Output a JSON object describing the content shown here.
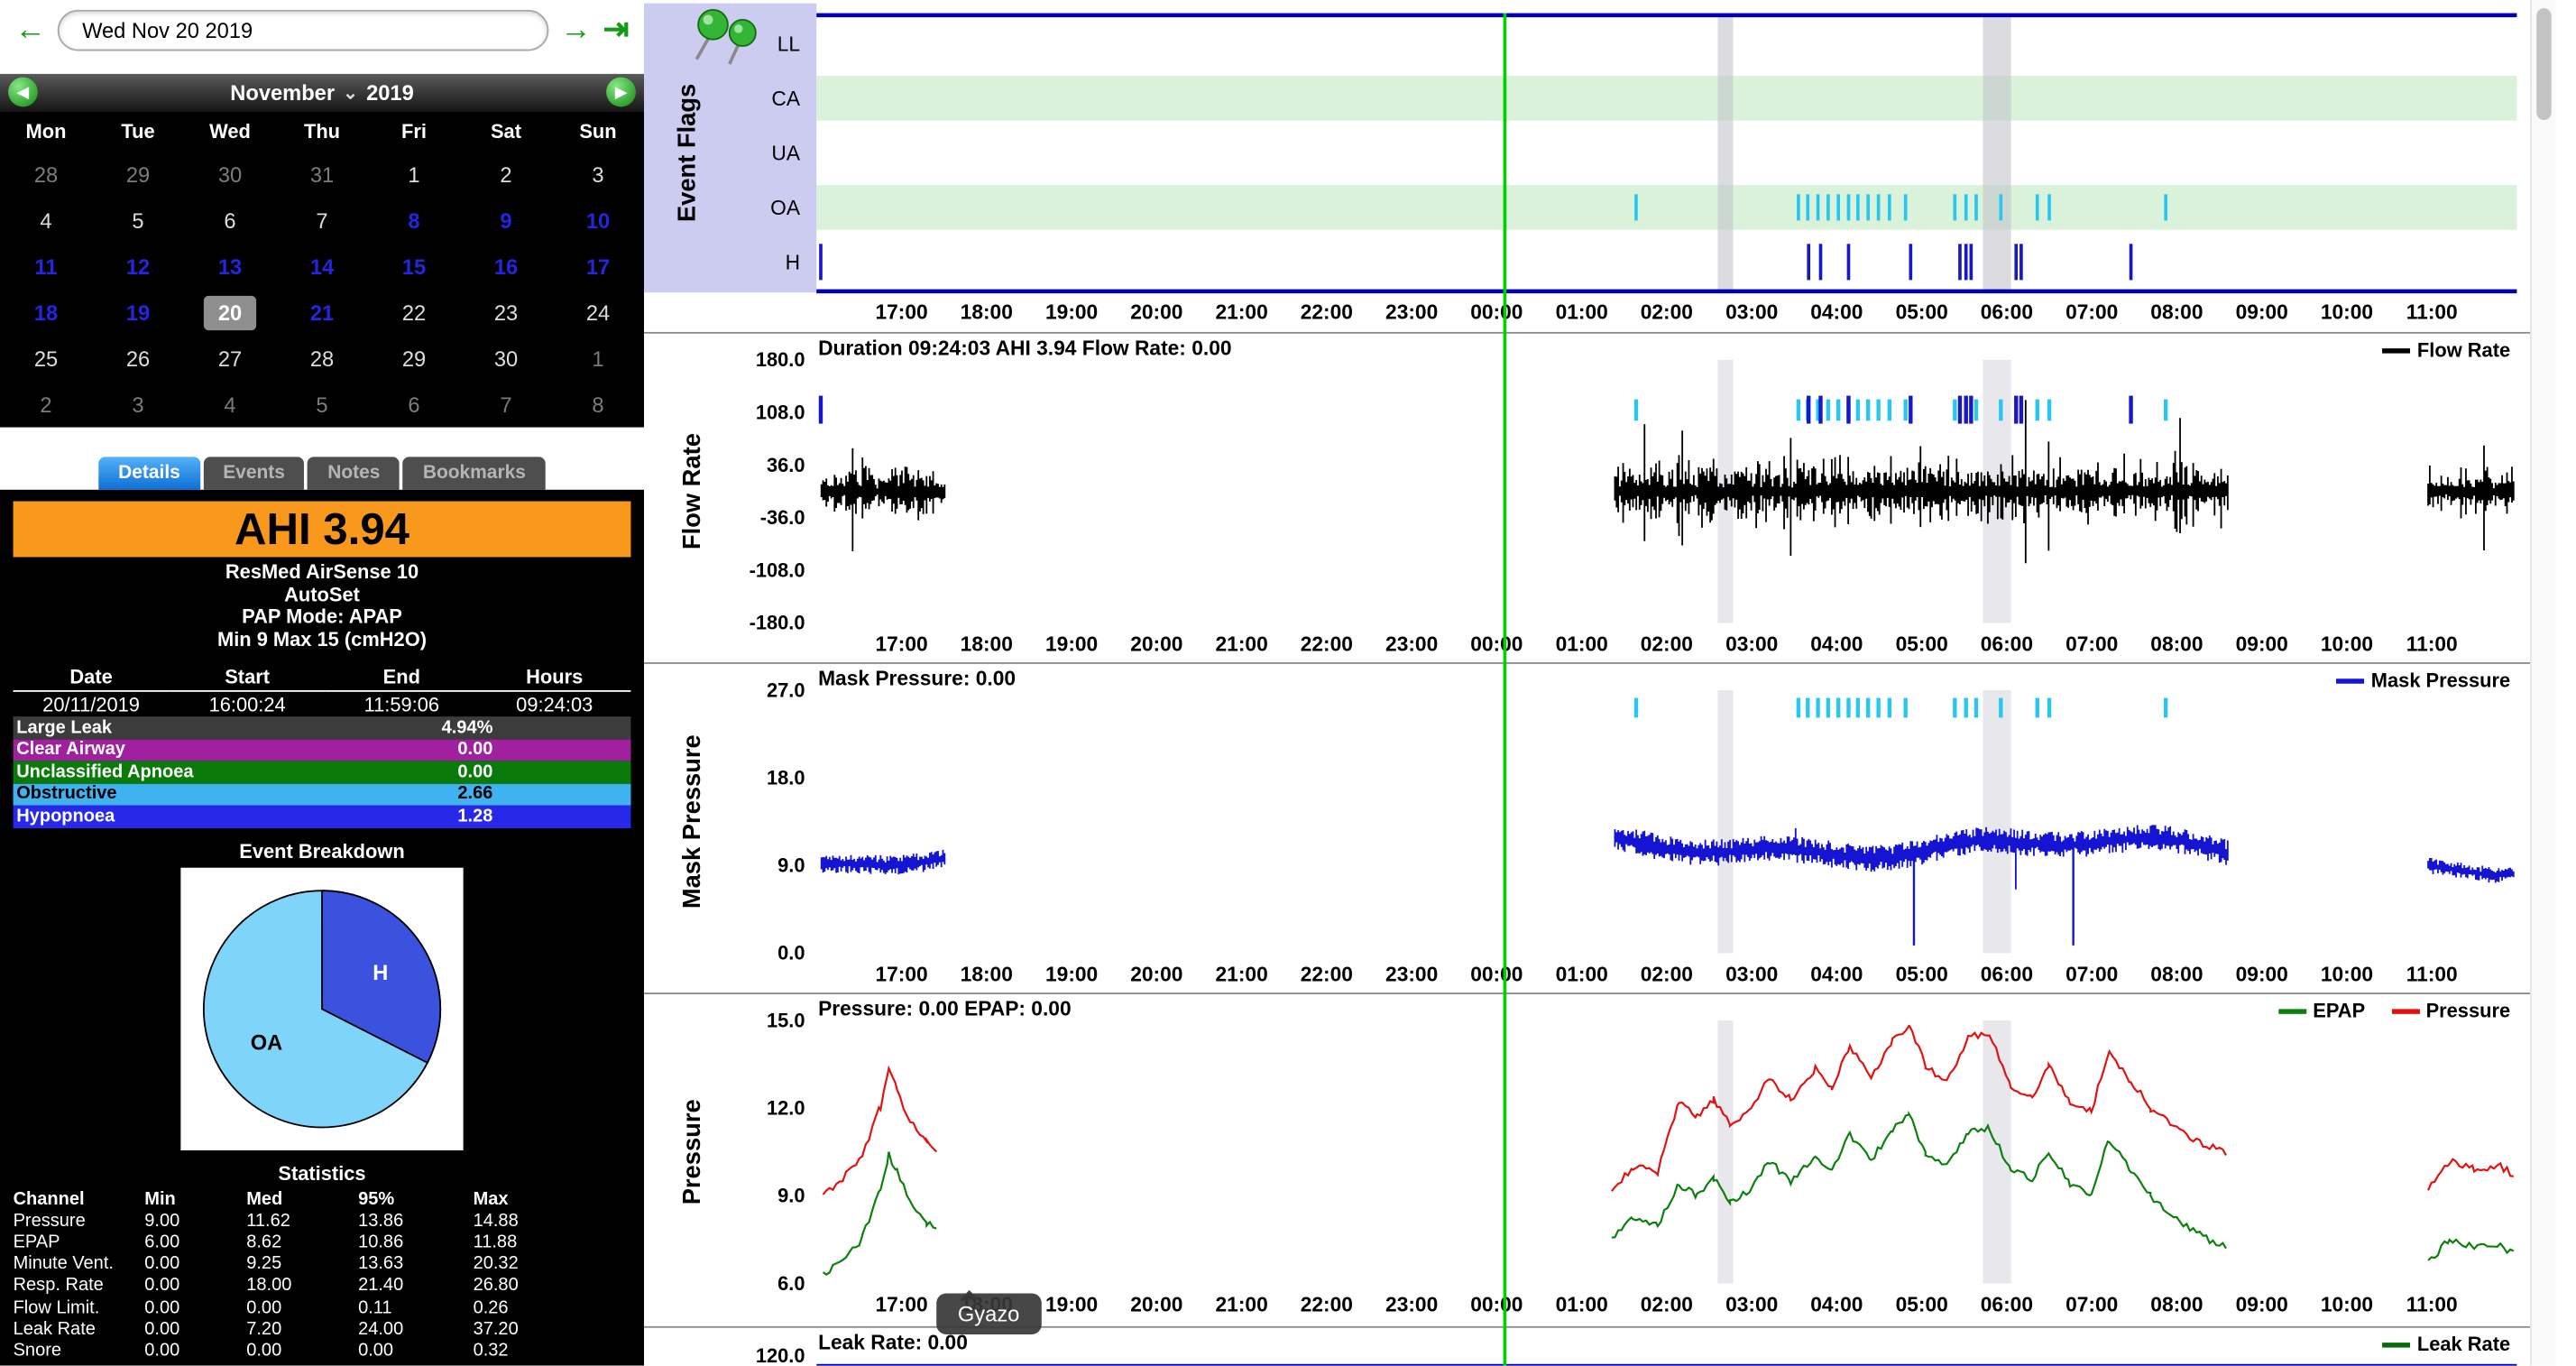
{
  "topbar": {
    "date_value": "Wed Nov 20 2019",
    "icons": {
      "prev": "←",
      "next": "→",
      "jump_last": "⇥"
    }
  },
  "calendar": {
    "month": "November",
    "year": "2019",
    "dropdown_icon": "⌄",
    "nav_prev_icon": "◀",
    "nav_next_icon": "▶",
    "day_headers": [
      "Mon",
      "Tue",
      "Wed",
      "Thu",
      "Fri",
      "Sat",
      "Sun"
    ],
    "weeks": [
      [
        {
          "d": "28",
          "t": "dim"
        },
        {
          "d": "29",
          "t": "dim"
        },
        {
          "d": "30",
          "t": "dim"
        },
        {
          "d": "31",
          "t": "dim"
        },
        {
          "d": "1",
          "t": "normal"
        },
        {
          "d": "2",
          "t": "normal"
        },
        {
          "d": "3",
          "t": "normal"
        }
      ],
      [
        {
          "d": "4",
          "t": "normal"
        },
        {
          "d": "5",
          "t": "normal"
        },
        {
          "d": "6",
          "t": "normal"
        },
        {
          "d": "7",
          "t": "normal"
        },
        {
          "d": "8",
          "t": "data"
        },
        {
          "d": "9",
          "t": "data"
        },
        {
          "d": "10",
          "t": "data"
        }
      ],
      [
        {
          "d": "11",
          "t": "data"
        },
        {
          "d": "12",
          "t": "data"
        },
        {
          "d": "13",
          "t": "data"
        },
        {
          "d": "14",
          "t": "data"
        },
        {
          "d": "15",
          "t": "data"
        },
        {
          "d": "16",
          "t": "data"
        },
        {
          "d": "17",
          "t": "data"
        }
      ],
      [
        {
          "d": "18",
          "t": "data"
        },
        {
          "d": "19",
          "t": "data"
        },
        {
          "d": "20",
          "t": "selected"
        },
        {
          "d": "21",
          "t": "data"
        },
        {
          "d": "22",
          "t": "normal"
        },
        {
          "d": "23",
          "t": "normal"
        },
        {
          "d": "24",
          "t": "normal"
        }
      ],
      [
        {
          "d": "25",
          "t": "normal"
        },
        {
          "d": "26",
          "t": "normal"
        },
        {
          "d": "27",
          "t": "normal"
        },
        {
          "d": "28",
          "t": "normal"
        },
        {
          "d": "29",
          "t": "normal"
        },
        {
          "d": "30",
          "t": "normal"
        },
        {
          "d": "1",
          "t": "dim"
        }
      ],
      [
        {
          "d": "2",
          "t": "dim"
        },
        {
          "d": "3",
          "t": "dim"
        },
        {
          "d": "4",
          "t": "dim"
        },
        {
          "d": "5",
          "t": "dim"
        },
        {
          "d": "6",
          "t": "dim"
        },
        {
          "d": "7",
          "t": "dim"
        },
        {
          "d": "8",
          "t": "dim"
        }
      ]
    ]
  },
  "tabs": [
    {
      "label": "Details",
      "active": true
    },
    {
      "label": "Events",
      "active": false
    },
    {
      "label": "Notes",
      "active": false
    },
    {
      "label": "Bookmarks",
      "active": false
    }
  ],
  "details": {
    "ahi_label": "AHI 3.94",
    "device_lines": [
      "ResMed AirSense 10",
      "AutoSet",
      "PAP Mode: APAP",
      "Min 9 Max 15 (cmH2O)"
    ],
    "session": {
      "headers": [
        "Date",
        "Start",
        "End",
        "Hours"
      ],
      "values": [
        "20/11/2019",
        "16:00:24",
        "11:59:06",
        "09:24:03"
      ]
    },
    "event_rows": [
      {
        "label": "Large Leak",
        "value": "4.94%",
        "bg": "#3c3c3c",
        "fg": "#ffffff"
      },
      {
        "label": "Clear Airway",
        "value": "0.00",
        "bg": "#a020a0",
        "fg": "#ffffff"
      },
      {
        "label": "Unclassified Apnoea",
        "value": "0.00",
        "bg": "#0a7a0a",
        "fg": "#ffffff"
      },
      {
        "label": "Obstructive",
        "value": "2.66",
        "bg": "#3fb2f0",
        "fg": "#000000"
      },
      {
        "label": "Hypopnoea",
        "value": "1.28",
        "bg": "#2828e8",
        "fg": "#ffffff"
      }
    ],
    "breakdown_title": "Event Breakdown",
    "pie": {
      "slices": [
        {
          "label": "OA",
          "pct": 67.5,
          "color": "#7fd4fa",
          "label_color": "#000000"
        },
        {
          "label": "H",
          "pct": 32.5,
          "color": "#3a52dd",
          "label_color": "#ffffff"
        }
      ]
    },
    "stats": {
      "title": "Statistics",
      "headers": [
        "Channel",
        "Min",
        "Med",
        "95%",
        "Max"
      ],
      "rows": [
        [
          "Pressure",
          "9.00",
          "11.62",
          "13.86",
          "14.88"
        ],
        [
          "EPAP",
          "6.00",
          "8.62",
          "10.86",
          "11.88"
        ],
        [
          "Minute Vent.",
          "0.00",
          "9.25",
          "13.63",
          "20.32"
        ],
        [
          "Resp. Rate",
          "0.00",
          "18.00",
          "21.40",
          "26.80"
        ],
        [
          "Flow Limit.",
          "0.00",
          "0.00",
          "0.11",
          "0.26"
        ],
        [
          "Leak Rate",
          "0.00",
          "7.20",
          "24.00",
          "37.20"
        ],
        [
          "Snore",
          "0.00",
          "0.00",
          "0.00",
          "0.32"
        ]
      ]
    }
  },
  "gyazo_label": "Gyazo",
  "time_ticks": [
    "17:00",
    "18:00",
    "19:00",
    "20:00",
    "21:00",
    "22:00",
    "23:00",
    "00:00",
    "01:00",
    "02:00",
    "03:00",
    "04:00",
    "05:00",
    "06:00",
    "07:00",
    "08:00",
    "09:00",
    "10:00",
    "11:00"
  ],
  "cursor_hour": 8.08,
  "chart_data": [
    {
      "id": "event_flags",
      "type": "event-flags",
      "ylabel": "Event Flags",
      "rows": [
        "LL",
        "CA",
        "UA",
        "OA",
        "H"
      ],
      "shaded_row_indexes": [
        1,
        3
      ],
      "x_axis": {
        "start": "16:00",
        "hours_span": 20
      },
      "oa_event_hours": [
        9.64,
        11.55,
        11.66,
        11.78,
        11.9,
        12.02,
        12.14,
        12.25,
        12.37,
        12.49,
        12.62,
        12.81,
        13.39,
        13.52,
        13.64,
        13.93,
        14.36,
        14.5,
        15.87
      ],
      "h_event_hours": [
        0.05,
        11.67,
        11.81,
        12.14,
        12.87,
        13.45,
        13.52,
        13.58,
        14.11,
        14.17,
        15.46
      ],
      "large_leak_bands": [
        [
          10.6,
          10.78
        ],
        [
          13.72,
          14.05
        ]
      ],
      "colors": {
        "oa": "#27c7f2",
        "h": "#1717c9",
        "band": "#c4c4cc",
        "shade": "#d9f2d9",
        "border": "#0000b4"
      }
    },
    {
      "id": "flow_rate",
      "type": "line",
      "ylabel": "Flow Rate",
      "title": "Duration 09:24:03 AHI 3.94 Flow Rate: 0.00",
      "legend": [
        {
          "label": "Flow Rate",
          "color": "#000000"
        }
      ],
      "ylim": [
        -180,
        180
      ],
      "yticks": [
        180,
        108,
        36,
        -36,
        -108,
        -180
      ],
      "segments": [
        {
          "start": 0.05,
          "end": 1.5,
          "amp": 40
        },
        {
          "start": 9.4,
          "end": 16.6,
          "amp": 48
        },
        {
          "start": 18.95,
          "end": 19.97,
          "amp": 38
        }
      ]
    },
    {
      "id": "mask_pressure",
      "type": "line",
      "ylabel": "Mask Pressure",
      "title": "Mask Pressure: 0.00",
      "legend": [
        {
          "label": "Mask Pressure",
          "color": "#1414d2"
        }
      ],
      "ylim": [
        0,
        27
      ],
      "yticks": [
        27,
        18,
        9,
        0
      ],
      "segments": [
        {
          "start": 0.05,
          "end": 1.5,
          "base": 8.8,
          "vr": 1.0
        },
        {
          "start": 9.4,
          "end": 16.6,
          "base": 10.6,
          "vr": 1.3
        },
        {
          "start": 18.95,
          "end": 19.97,
          "base": 9.2,
          "vr": 0.8
        }
      ],
      "down_spikes": [
        12.9,
        14.78
      ]
    },
    {
      "id": "pressure",
      "type": "line",
      "ylabel": "Pressure",
      "title": "Pressure: 0.00 EPAP: 0.00",
      "legend": [
        {
          "label": "EPAP",
          "color": "#0c800c"
        },
        {
          "label": "Pressure",
          "color": "#e31212"
        }
      ],
      "ylim": [
        6,
        15
      ],
      "yticks": [
        15,
        12,
        9,
        6
      ],
      "series": [
        {
          "name": "Pressure",
          "color": "#e31212",
          "segments": [
            [
              [
                0.08,
                9.0
              ],
              [
                0.3,
                9.6
              ],
              [
                0.55,
                10.4
              ],
              [
                0.75,
                12.0
              ],
              [
                0.85,
                13.3
              ],
              [
                0.95,
                12.6
              ],
              [
                1.1,
                11.6
              ],
              [
                1.3,
                10.8
              ],
              [
                1.45,
                10.3
              ]
            ],
            [
              [
                9.35,
                9.2
              ],
              [
                9.6,
                10.0
              ],
              [
                9.9,
                9.8
              ],
              [
                10.15,
                12.2
              ],
              [
                10.35,
                11.7
              ],
              [
                10.55,
                12.3
              ],
              [
                10.75,
                11.4
              ],
              [
                11.0,
                12.0
              ],
              [
                11.2,
                13.0
              ],
              [
                11.45,
                12.3
              ],
              [
                11.75,
                13.4
              ],
              [
                11.95,
                12.6
              ],
              [
                12.15,
                14.1
              ],
              [
                12.4,
                13.1
              ],
              [
                12.65,
                14.3
              ],
              [
                12.85,
                14.9
              ],
              [
                13.05,
                13.4
              ],
              [
                13.3,
                12.9
              ],
              [
                13.55,
                14.4
              ],
              [
                13.8,
                14.6
              ],
              [
                14.05,
                12.7
              ],
              [
                14.3,
                12.4
              ],
              [
                14.5,
                13.5
              ],
              [
                14.75,
                12.2
              ],
              [
                15.0,
                11.9
              ],
              [
                15.2,
                13.9
              ],
              [
                15.45,
                12.9
              ],
              [
                15.7,
                12.0
              ],
              [
                16.0,
                11.3
              ],
              [
                16.3,
                10.8
              ],
              [
                16.6,
                10.4
              ]
            ],
            [
              [
                18.95,
                9.3
              ],
              [
                19.2,
                10.2
              ],
              [
                19.5,
                9.9
              ],
              [
                19.8,
                10.0
              ],
              [
                19.97,
                9.7
              ]
            ]
          ]
        },
        {
          "name": "EPAP",
          "color": "#0c800c",
          "segments": [
            [
              [
                0.08,
                6.3
              ],
              [
                0.3,
                6.8
              ],
              [
                0.55,
                7.6
              ],
              [
                0.75,
                9.2
              ],
              [
                0.85,
                10.4
              ],
              [
                0.95,
                9.8
              ],
              [
                1.1,
                8.8
              ],
              [
                1.3,
                8.1
              ],
              [
                1.45,
                7.8
              ]
            ],
            [
              [
                9.35,
                7.6
              ],
              [
                9.6,
                8.2
              ],
              [
                9.9,
                8.0
              ],
              [
                10.15,
                9.4
              ],
              [
                10.35,
                9.0
              ],
              [
                10.55,
                9.6
              ],
              [
                10.75,
                8.8
              ],
              [
                11.0,
                9.2
              ],
              [
                11.2,
                10.2
              ],
              [
                11.45,
                9.5
              ],
              [
                11.75,
                10.4
              ],
              [
                11.95,
                9.8
              ],
              [
                12.15,
                11.1
              ],
              [
                12.4,
                10.2
              ],
              [
                12.65,
                11.3
              ],
              [
                12.85,
                11.8
              ],
              [
                13.05,
                10.4
              ],
              [
                13.3,
                10.0
              ],
              [
                13.55,
                11.2
              ],
              [
                13.8,
                11.3
              ],
              [
                14.05,
                9.9
              ],
              [
                14.3,
                9.6
              ],
              [
                14.5,
                10.5
              ],
              [
                14.75,
                9.4
              ],
              [
                15.0,
                9.0
              ],
              [
                15.2,
                10.9
              ],
              [
                15.45,
                9.9
              ],
              [
                15.7,
                9.0
              ],
              [
                16.0,
                8.2
              ],
              [
                16.3,
                7.6
              ],
              [
                16.6,
                7.2
              ]
            ],
            [
              [
                18.95,
                6.7
              ],
              [
                19.2,
                7.5
              ],
              [
                19.5,
                7.2
              ],
              [
                19.8,
                7.3
              ],
              [
                19.97,
                7.0
              ]
            ]
          ]
        }
      ]
    },
    {
      "id": "leak_rate",
      "type": "line",
      "ylabel": "Leak Rate",
      "title": "Leak Rate: 0.00",
      "legend": [
        {
          "label": "Leak Rate",
          "color": "#0a6a0a"
        }
      ],
      "yticks": [
        120
      ]
    }
  ]
}
